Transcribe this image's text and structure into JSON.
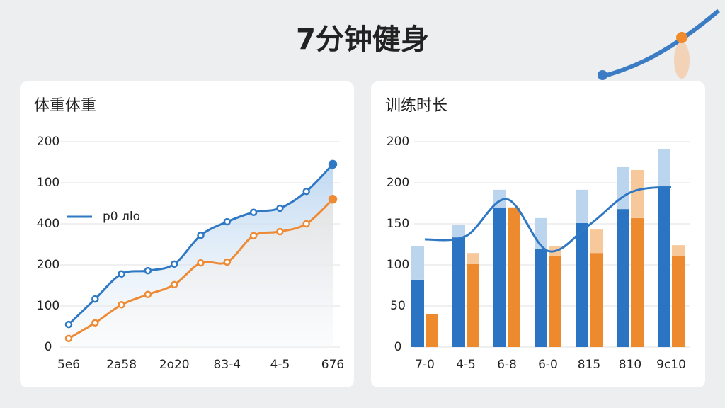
{
  "title": "7分钟健身",
  "chart_data": [
    {
      "type": "line",
      "title": "体重体重",
      "categories": [
        "5e6",
        null,
        "2a58",
        null,
        "2o20",
        null,
        "83-4",
        null,
        "4-5",
        null,
        "676"
      ],
      "y_labels": [
        "0",
        "100",
        "200",
        "400",
        "100",
        "200"
      ],
      "ylim": [
        0,
        5
      ],
      "yticks": [
        0,
        1,
        2,
        3,
        4,
        5
      ],
      "grid": true,
      "series": [
        {
          "name": "p0 лlo",
          "color": "#2f78c4",
          "values": [
            0.55,
            1.17,
            1.78,
            1.86,
            2.02,
            2.72,
            3.05,
            3.28,
            3.38,
            3.79,
            4.45
          ]
        },
        {
          "color": "#ee8a33",
          "values": [
            0.21,
            0.59,
            1.03,
            1.28,
            1.52,
            2.05,
            2.07,
            2.71,
            2.81,
            3.0,
            3.6
          ]
        }
      ]
    },
    {
      "type": "bar",
      "title": "训练时长",
      "categories": [
        "7-0",
        "4-5",
        "6-8",
        "6-0",
        "815",
        "810",
        "9c10"
      ],
      "category_colors": [
        "#222",
        "#222",
        "#222",
        "#222",
        "#222",
        "#222",
        "#e8862a"
      ],
      "y_labels": [
        "0",
        "50",
        "100",
        "150",
        "200",
        "200"
      ],
      "ylim": [
        0,
        5
      ],
      "yticks": [
        0,
        1,
        2,
        3,
        4,
        5
      ],
      "grid": true,
      "series": [
        {
          "color": "#2b74c4",
          "values": [
            1.64,
            2.67,
            3.4,
            2.38,
            3.02,
            3.36,
            3.9
          ]
        },
        {
          "color": "#bcd5ee",
          "values": [
            0.81,
            0.3,
            0.43,
            0.76,
            0.81,
            1.02,
            0.91
          ],
          "stack_on": 0
        },
        {
          "color": "#ee8a2e",
          "values": [
            0.81,
            2.02,
            3.4,
            2.21,
            2.29,
            3.14,
            2.21
          ]
        },
        {
          "color": "#f7c89a",
          "values": [
            0,
            0.27,
            0,
            0.24,
            0.57,
            1.17,
            0.27
          ],
          "stack_on": 2
        },
        {
          "type": "line",
          "color": "#2f78c4",
          "values": [
            2.62,
            2.7,
            3.6,
            2.34,
            2.97,
            3.76,
            3.9
          ]
        }
      ]
    }
  ]
}
